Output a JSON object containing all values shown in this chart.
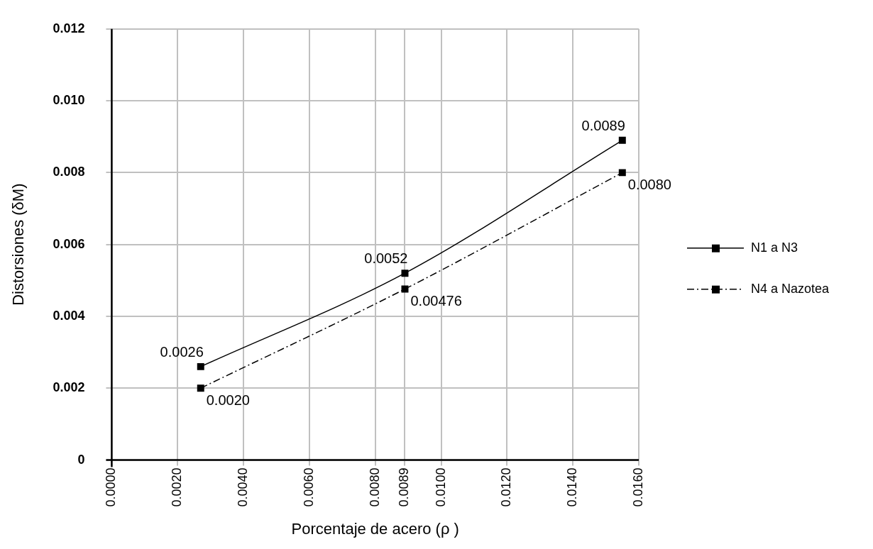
{
  "chart_data": {
    "type": "line",
    "xlabel": "Porcentaje de acero (ρ )",
    "ylabel": "Distorsiones (δM)",
    "xlim": [
      0,
      0.016
    ],
    "xticks": [
      {
        "value": 0,
        "label": "0.0000"
      },
      {
        "value": 0.002,
        "label": "0.0020"
      },
      {
        "value": 0.004,
        "label": "0.0040"
      },
      {
        "value": 0.006,
        "label": "0.0060"
      },
      {
        "value": 0.008,
        "label": "0.0080"
      },
      {
        "value": 0.0089,
        "label": "0.0089"
      },
      {
        "value": 0.01,
        "label": "0.0100"
      },
      {
        "value": 0.012,
        "label": "0.0120"
      },
      {
        "value": 0.014,
        "label": "0.0140"
      },
      {
        "value": 0.016,
        "label": "0.0160"
      }
    ],
    "ylim": [
      0,
      0.012
    ],
    "yticks": [
      0,
      0.002,
      0.004,
      0.006,
      0.008,
      {
        "value": 0.01,
        "label": "0.010"
      },
      0.012
    ],
    "grid": true,
    "legend": "right",
    "marker": "square",
    "series": [
      {
        "name": "N1 a N3",
        "color": "#000000",
        "line_style": "solid",
        "x": [
          0.0027,
          0.0089,
          0.0155
        ],
        "values": [
          0.0026,
          0.0052,
          0.0089
        ],
        "value_labels": [
          "0.0026",
          "0.0052",
          "0.0089"
        ]
      },
      {
        "name": "N4 a Nazotea",
        "color": "#000000",
        "line_style": "dashed",
        "x": [
          0.0027,
          0.0089,
          0.0155
        ],
        "values": [
          0.002,
          0.00476,
          0.008
        ],
        "value_labels": [
          "0.0020",
          "0.00476",
          "0.0080"
        ]
      }
    ]
  }
}
